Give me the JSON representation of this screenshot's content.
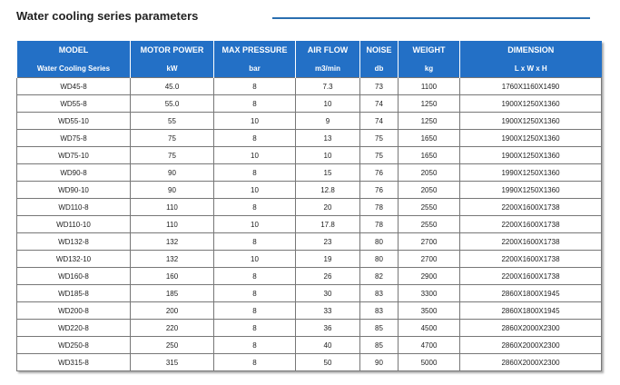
{
  "header": {
    "title": "Water cooling series parameters"
  },
  "table": {
    "columns": [
      {
        "name": "MODEL",
        "unit": "Water Cooling Series"
      },
      {
        "name": "MOTOR POWER",
        "unit": "kW"
      },
      {
        "name": "MAX PRESSURE",
        "unit": "bar"
      },
      {
        "name": "AIR FLOW",
        "unit": "m3/min"
      },
      {
        "name": "NOISE",
        "unit": "db"
      },
      {
        "name": "WEIGHT",
        "unit": "kg"
      },
      {
        "name": "DIMENSION",
        "unit": "L x W x H"
      }
    ],
    "rows": [
      [
        "WD45-8",
        "45.0",
        "8",
        "7.3",
        "73",
        "1100",
        "1760X1160X1490"
      ],
      [
        "WD55-8",
        "55.0",
        "8",
        "10",
        "74",
        "1250",
        "1900X1250X1360"
      ],
      [
        "WD55-10",
        "55",
        "10",
        "9",
        "74",
        "1250",
        "1900X1250X1360"
      ],
      [
        "WD75-8",
        "75",
        "8",
        "13",
        "75",
        "1650",
        "1900X1250X1360"
      ],
      [
        "WD75-10",
        "75",
        "10",
        "10",
        "75",
        "1650",
        "1900X1250X1360"
      ],
      [
        "WD90-8",
        "90",
        "8",
        "15",
        "76",
        "2050",
        "1990X1250X1360"
      ],
      [
        "WD90-10",
        "90",
        "10",
        "12.8",
        "76",
        "2050",
        "1990X1250X1360"
      ],
      [
        "WD110-8",
        "110",
        "8",
        "20",
        "78",
        "2550",
        "2200X1600X1738"
      ],
      [
        "WD110-10",
        "110",
        "10",
        "17.8",
        "78",
        "2550",
        "2200X1600X1738"
      ],
      [
        "WD132-8",
        "132",
        "8",
        "23",
        "80",
        "2700",
        "2200X1600X1738"
      ],
      [
        "WD132-10",
        "132",
        "10",
        "19",
        "80",
        "2700",
        "2200X1600X1738"
      ],
      [
        "WD160-8",
        "160",
        "8",
        "26",
        "82",
        "2900",
        "2200X1600X1738"
      ],
      [
        "WD185-8",
        "185",
        "8",
        "30",
        "83",
        "3300",
        "2860X1800X1945"
      ],
      [
        "WD200-8",
        "200",
        "8",
        "33",
        "83",
        "3500",
        "2860X1800X1945"
      ],
      [
        "WD220-8",
        "220",
        "8",
        "36",
        "85",
        "4500",
        "2860X2000X2300"
      ],
      [
        "WD250-8",
        "250",
        "8",
        "40",
        "85",
        "4700",
        "2860X2000X2300"
      ],
      [
        "WD315-8",
        "315",
        "8",
        "50",
        "90",
        "5000",
        "2860X2000X2300"
      ]
    ]
  }
}
